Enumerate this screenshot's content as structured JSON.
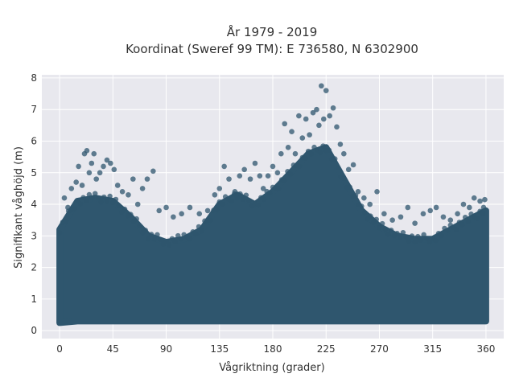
{
  "colors": {
    "plot_bg": "#e8e8ee",
    "grid": "#ffffff",
    "marker": "#2f566e",
    "text": "#333333"
  },
  "chart_data": {
    "type": "scatter",
    "title": "År 1979 - 2019",
    "subtitle": "Koordinat (Sweref 99 TM): E 736580, N 6302900",
    "xlabel": "Vågriktning (grader)",
    "ylabel": "Signifikant våghöjd (m)",
    "xlim": [
      -15,
      375
    ],
    "ylim": [
      -0.25,
      8.1
    ],
    "xticks": [
      0,
      45,
      90,
      135,
      180,
      225,
      270,
      315,
      360
    ],
    "yticks": [
      0,
      1,
      2,
      3,
      4,
      5,
      6,
      7,
      8
    ],
    "grid": true,
    "marker_opacity": 0.75,
    "density_band": {
      "description": "Dense cloud of samples at every direction from ~0.3 m up to the envelope",
      "x": [
        0,
        15,
        30,
        45,
        60,
        75,
        90,
        105,
        120,
        135,
        150,
        165,
        180,
        195,
        210,
        225,
        240,
        255,
        270,
        285,
        300,
        315,
        330,
        345,
        360
      ],
      "lower": [
        0.25,
        0.3,
        0.3,
        0.3,
        0.3,
        0.3,
        0.3,
        0.3,
        0.3,
        0.3,
        0.3,
        0.3,
        0.3,
        0.3,
        0.3,
        0.3,
        0.3,
        0.3,
        0.3,
        0.3,
        0.3,
        0.3,
        0.3,
        0.3,
        0.3
      ],
      "upper": [
        3.2,
        4.1,
        4.2,
        4.1,
        3.6,
        3.0,
        2.8,
        2.9,
        3.2,
        4.0,
        4.3,
        4.0,
        4.4,
        5.0,
        5.6,
        5.8,
        4.8,
        3.8,
        3.3,
        3.0,
        2.9,
        2.9,
        3.2,
        3.5,
        3.8
      ]
    },
    "outlier_points": [
      {
        "x": 4,
        "y": 4.2
      },
      {
        "x": 7,
        "y": 3.9
      },
      {
        "x": 10,
        "y": 4.5
      },
      {
        "x": 14,
        "y": 4.7
      },
      {
        "x": 16,
        "y": 5.2
      },
      {
        "x": 19,
        "y": 4.6
      },
      {
        "x": 21,
        "y": 5.6
      },
      {
        "x": 23,
        "y": 5.7
      },
      {
        "x": 25,
        "y": 5.0
      },
      {
        "x": 27,
        "y": 5.3
      },
      {
        "x": 29,
        "y": 5.6
      },
      {
        "x": 31,
        "y": 4.8
      },
      {
        "x": 34,
        "y": 5.0
      },
      {
        "x": 37,
        "y": 5.2
      },
      {
        "x": 40,
        "y": 5.4
      },
      {
        "x": 43,
        "y": 5.3
      },
      {
        "x": 46,
        "y": 5.1
      },
      {
        "x": 49,
        "y": 4.6
      },
      {
        "x": 53,
        "y": 4.4
      },
      {
        "x": 58,
        "y": 4.3
      },
      {
        "x": 62,
        "y": 4.8
      },
      {
        "x": 66,
        "y": 4.0
      },
      {
        "x": 70,
        "y": 4.5
      },
      {
        "x": 74,
        "y": 4.8
      },
      {
        "x": 79,
        "y": 5.05
      },
      {
        "x": 84,
        "y": 3.8
      },
      {
        "x": 90,
        "y": 3.9
      },
      {
        "x": 96,
        "y": 3.6
      },
      {
        "x": 103,
        "y": 3.7
      },
      {
        "x": 110,
        "y": 3.9
      },
      {
        "x": 118,
        "y": 3.7
      },
      {
        "x": 125,
        "y": 3.8
      },
      {
        "x": 131,
        "y": 4.3
      },
      {
        "x": 135,
        "y": 4.5
      },
      {
        "x": 139,
        "y": 5.2
      },
      {
        "x": 143,
        "y": 4.8
      },
      {
        "x": 148,
        "y": 4.4
      },
      {
        "x": 152,
        "y": 4.9
      },
      {
        "x": 156,
        "y": 5.1
      },
      {
        "x": 161,
        "y": 4.8
      },
      {
        "x": 165,
        "y": 5.3
      },
      {
        "x": 169,
        "y": 4.9
      },
      {
        "x": 172,
        "y": 4.5
      },
      {
        "x": 176,
        "y": 4.9
      },
      {
        "x": 180,
        "y": 5.2
      },
      {
        "x": 184,
        "y": 5.0
      },
      {
        "x": 187,
        "y": 5.6
      },
      {
        "x": 190,
        "y": 6.55
      },
      {
        "x": 193,
        "y": 5.8
      },
      {
        "x": 196,
        "y": 6.3
      },
      {
        "x": 199,
        "y": 5.6
      },
      {
        "x": 202,
        "y": 6.8
      },
      {
        "x": 205,
        "y": 6.1
      },
      {
        "x": 208,
        "y": 6.7
      },
      {
        "x": 211,
        "y": 6.2
      },
      {
        "x": 214,
        "y": 6.9
      },
      {
        "x": 217,
        "y": 7.0
      },
      {
        "x": 219,
        "y": 6.5
      },
      {
        "x": 221,
        "y": 7.75
      },
      {
        "x": 223,
        "y": 6.7
      },
      {
        "x": 225,
        "y": 7.6
      },
      {
        "x": 228,
        "y": 6.8
      },
      {
        "x": 231,
        "y": 7.05
      },
      {
        "x": 234,
        "y": 6.45
      },
      {
        "x": 237,
        "y": 5.9
      },
      {
        "x": 240,
        "y": 5.6
      },
      {
        "x": 244,
        "y": 5.1
      },
      {
        "x": 248,
        "y": 5.25
      },
      {
        "x": 252,
        "y": 4.4
      },
      {
        "x": 257,
        "y": 4.2
      },
      {
        "x": 262,
        "y": 4.0
      },
      {
        "x": 268,
        "y": 4.4
      },
      {
        "x": 274,
        "y": 3.7
      },
      {
        "x": 281,
        "y": 3.5
      },
      {
        "x": 288,
        "y": 3.6
      },
      {
        "x": 294,
        "y": 3.9
      },
      {
        "x": 300,
        "y": 3.4
      },
      {
        "x": 307,
        "y": 3.7
      },
      {
        "x": 313,
        "y": 3.8
      },
      {
        "x": 318,
        "y": 3.9
      },
      {
        "x": 324,
        "y": 3.6
      },
      {
        "x": 330,
        "y": 3.5
      },
      {
        "x": 336,
        "y": 3.7
      },
      {
        "x": 341,
        "y": 4.0
      },
      {
        "x": 346,
        "y": 3.9
      },
      {
        "x": 350,
        "y": 4.2
      },
      {
        "x": 355,
        "y": 4.1
      },
      {
        "x": 358,
        "y": 3.9
      },
      {
        "x": 359,
        "y": 4.15
      }
    ]
  }
}
